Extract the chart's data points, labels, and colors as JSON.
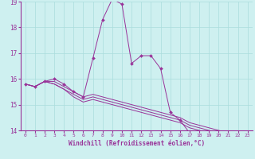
{
  "xlabel": "Windchill (Refroidissement éolien,°C)",
  "bg_color": "#cef0f0",
  "grid_color": "#aadddd",
  "line_color": "#993399",
  "xlim": [
    -0.5,
    23.5
  ],
  "ylim": [
    14,
    19
  ],
  "yticks": [
    14,
    15,
    16,
    17,
    18,
    19
  ],
  "xticks": [
    0,
    1,
    2,
    3,
    4,
    5,
    6,
    7,
    8,
    9,
    10,
    11,
    12,
    13,
    14,
    15,
    16,
    17,
    18,
    19,
    20,
    21,
    22,
    23
  ],
  "series": [
    [
      15.8,
      15.7,
      15.9,
      16.0,
      15.8,
      15.5,
      15.3,
      16.8,
      18.3,
      19.1,
      18.9,
      16.6,
      16.9,
      16.9,
      16.4,
      14.7,
      14.4,
      13.9,
      13.9,
      13.9,
      13.8,
      13.8,
      13.8,
      13.7
    ],
    [
      15.8,
      15.7,
      15.9,
      15.9,
      15.7,
      15.5,
      15.3,
      15.4,
      15.3,
      15.2,
      15.1,
      15.0,
      14.9,
      14.8,
      14.7,
      14.6,
      14.5,
      14.3,
      14.2,
      14.1,
      14.0,
      13.9,
      13.8,
      13.7
    ],
    [
      15.8,
      15.7,
      15.9,
      15.8,
      15.6,
      15.4,
      15.2,
      15.3,
      15.2,
      15.1,
      15.0,
      14.9,
      14.8,
      14.7,
      14.6,
      14.5,
      14.4,
      14.2,
      14.1,
      14.0,
      13.9,
      13.8,
      13.7,
      13.6
    ],
    [
      15.8,
      15.7,
      15.9,
      15.8,
      15.6,
      15.3,
      15.1,
      15.2,
      15.1,
      15.0,
      14.9,
      14.8,
      14.7,
      14.6,
      14.5,
      14.4,
      14.3,
      14.1,
      14.0,
      13.9,
      13.8,
      13.7,
      13.6,
      13.6
    ]
  ],
  "font_size_x": 4.5,
  "font_size_y": 5.5,
  "font_size_label": 5.5
}
